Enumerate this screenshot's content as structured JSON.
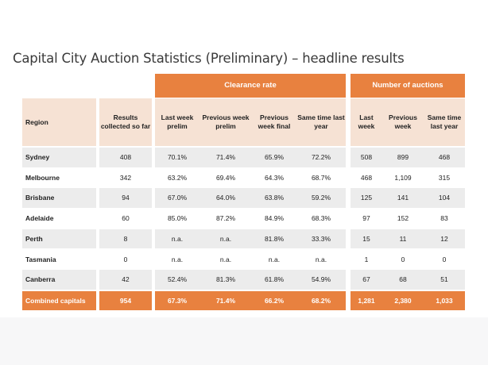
{
  "title": "Capital City Auction Statistics (Preliminary) – headline results",
  "groups": {
    "clearance": "Clearance rate",
    "auctions": "Number of auctions"
  },
  "columns": {
    "region": "Region",
    "results": "Results collected so far",
    "cr_last_week": "Last week prelim",
    "cr_prev_prelim": "Previous week prelim",
    "cr_prev_final": "Previous week final",
    "cr_same_time": "Same time last year",
    "na_last_week": "Last week",
    "na_prev_week": "Previous week",
    "na_same_time": "Same time last year"
  },
  "rows": [
    {
      "region": "Sydney",
      "results": "408",
      "cr_last_week": "70.1%",
      "cr_prev_prelim": "71.4%",
      "cr_prev_final": "65.9%",
      "cr_same_time": "72.2%",
      "na_last_week": "508",
      "na_prev_week": "899",
      "na_same_time": "468"
    },
    {
      "region": "Melbourne",
      "results": "342",
      "cr_last_week": "63.2%",
      "cr_prev_prelim": "69.4%",
      "cr_prev_final": "64.3%",
      "cr_same_time": "68.7%",
      "na_last_week": "468",
      "na_prev_week": "1,109",
      "na_same_time": "315"
    },
    {
      "region": "Brisbane",
      "results": "94",
      "cr_last_week": "67.0%",
      "cr_prev_prelim": "64.0%",
      "cr_prev_final": "63.8%",
      "cr_same_time": "59.2%",
      "na_last_week": "125",
      "na_prev_week": "141",
      "na_same_time": "104"
    },
    {
      "region": "Adelaide",
      "results": "60",
      "cr_last_week": "85.0%",
      "cr_prev_prelim": "87.2%",
      "cr_prev_final": "84.9%",
      "cr_same_time": "68.3%",
      "na_last_week": "97",
      "na_prev_week": "152",
      "na_same_time": "83"
    },
    {
      "region": "Perth",
      "results": "8",
      "cr_last_week": "n.a.",
      "cr_prev_prelim": "n.a.",
      "cr_prev_final": "81.8%",
      "cr_same_time": "33.3%",
      "na_last_week": "15",
      "na_prev_week": "11",
      "na_same_time": "12"
    },
    {
      "region": "Tasmania",
      "results": "0",
      "cr_last_week": "n.a.",
      "cr_prev_prelim": "n.a.",
      "cr_prev_final": "n.a.",
      "cr_same_time": "n.a.",
      "na_last_week": "1",
      "na_prev_week": "0",
      "na_same_time": "0"
    },
    {
      "region": "Canberra",
      "results": "42",
      "cr_last_week": "52.4%",
      "cr_prev_prelim": "81.3%",
      "cr_prev_final": "61.8%",
      "cr_same_time": "54.9%",
      "na_last_week": "67",
      "na_prev_week": "68",
      "na_same_time": "51"
    }
  ],
  "total": {
    "region": "Combined capitals",
    "results": "954",
    "cr_last_week": "67.3%",
    "cr_prev_prelim": "71.4%",
    "cr_prev_final": "66.2%",
    "cr_same_time": "68.2%",
    "na_last_week": "1,281",
    "na_prev_week": "2,380",
    "na_same_time": "1,033"
  },
  "colors": {
    "accent": "#e8813f",
    "header_bg": "#f6e2d4",
    "row_alt": "#ececec"
  }
}
